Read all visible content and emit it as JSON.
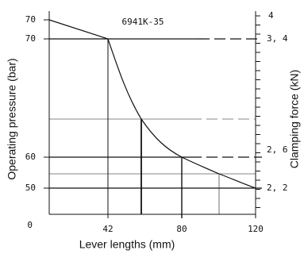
{
  "title": "6941K-35",
  "left_axis": {
    "label": "Operating pressure (bar)",
    "ticks": [
      "70",
      "70",
      "60",
      "50",
      "0"
    ]
  },
  "right_axis": {
    "label": "Clamping force (kN)",
    "ticks": [
      "4",
      "3, 4",
      "2, 6",
      "2, 2"
    ]
  },
  "bottom_axis": {
    "label": "Lever lengths (mm)",
    "ticks": [
      "42",
      "80",
      "120"
    ]
  }
}
